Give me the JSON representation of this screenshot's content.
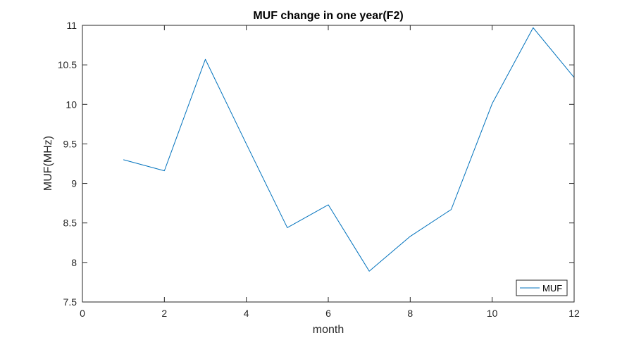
{
  "chart_data": {
    "type": "line",
    "title": "MUF change in one year(F2)",
    "xlabel": "month",
    "ylabel": "MUF(MHz)",
    "xlim": [
      0,
      12
    ],
    "ylim": [
      7.5,
      11
    ],
    "xticks": [
      0,
      2,
      4,
      6,
      8,
      10,
      12
    ],
    "yticks": [
      7.5,
      8,
      8.5,
      9,
      9.5,
      10,
      10.5,
      11
    ],
    "xtick_labels": [
      "0",
      "2",
      "4",
      "6",
      "8",
      "10",
      "12"
    ],
    "ytick_labels": [
      "7.5",
      "8",
      "8.5",
      "9",
      "9.5",
      "10",
      "10.5",
      "11"
    ],
    "grid": false,
    "legend_position": "bottom-right",
    "series": [
      {
        "name": "MUF",
        "color": "#0072BD",
        "x": [
          1,
          2,
          3,
          4,
          5,
          6,
          7,
          8,
          9,
          10,
          11,
          12
        ],
        "y": [
          9.3,
          9.16,
          10.57,
          9.5,
          8.44,
          8.73,
          7.89,
          8.33,
          8.67,
          10.01,
          10.97,
          10.34
        ]
      }
    ]
  }
}
